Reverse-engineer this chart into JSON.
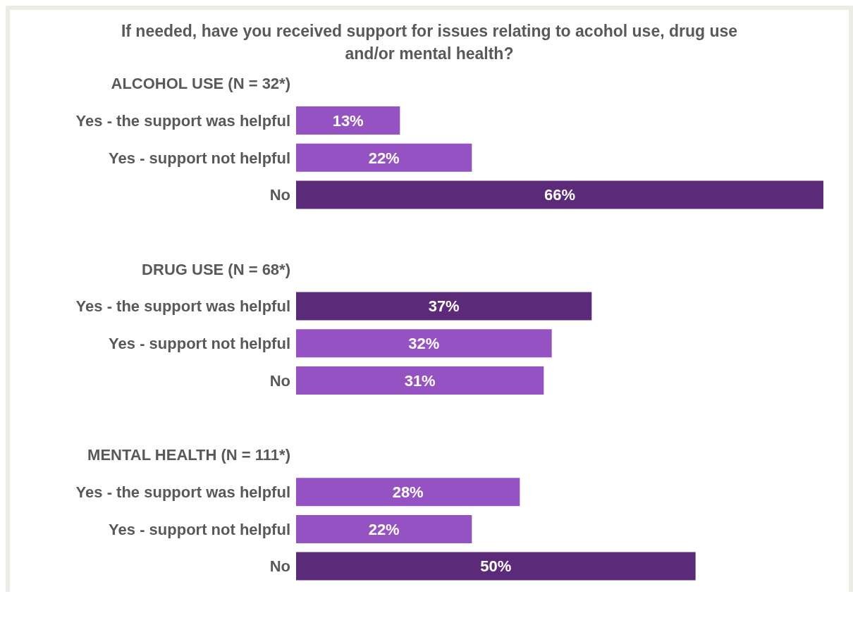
{
  "chart_data": {
    "type": "bar",
    "orientation": "horizontal",
    "title": "If needed, have you received support for issues relating to acohol use, drug use and/or mental health?",
    "categories": [
      "ALCOHOL USE (N = 32*)",
      "Yes - the support was helpful",
      "Yes - support not helpful",
      "No",
      null,
      "DRUG USE (N = 68*)",
      "Yes - the support was helpful",
      "Yes - support not helpful",
      "No",
      null,
      "MENTAL HEALTH (N = 111*)",
      "Yes - the support was helpful",
      "Yes - support not helpful",
      "No"
    ],
    "values": [
      null,
      13,
      22,
      66,
      null,
      null,
      37,
      32,
      31,
      null,
      null,
      28,
      22,
      50
    ],
    "colors": [
      null,
      "#9452c2",
      "#9452c2",
      "#5b2a78",
      null,
      null,
      "#5b2a78",
      "#9452c2",
      "#9452c2",
      null,
      null,
      "#9452c2",
      "#9452c2",
      "#5b2a78"
    ],
    "value_labels": [
      null,
      "13%",
      "22%",
      "66%",
      null,
      null,
      "37%",
      "32%",
      "31%",
      null,
      null,
      "28%",
      "22%",
      "50%"
    ],
    "grid": false,
    "legend": false
  }
}
